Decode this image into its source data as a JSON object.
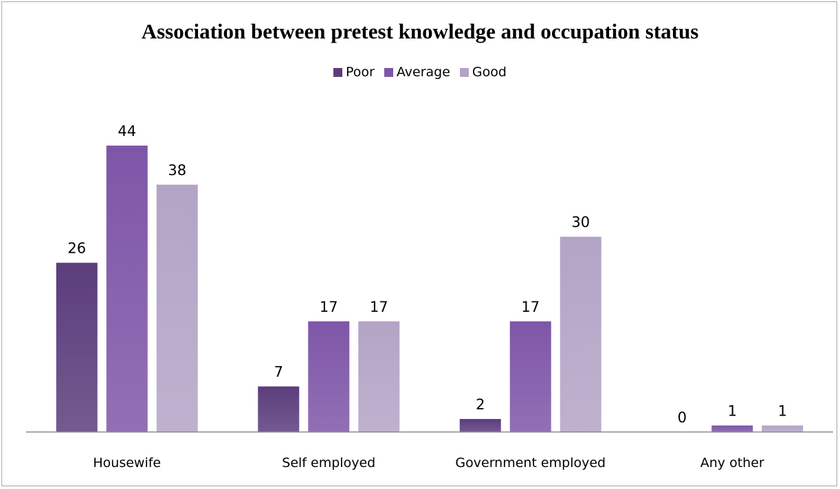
{
  "chart_data": {
    "type": "bar",
    "title": "Association between pretest knowledge and occupation status",
    "categories": [
      "Housewife",
      "Self employed",
      "Government employed",
      "Any other"
    ],
    "series": [
      {
        "name": "Poor",
        "values": [
          26,
          7,
          2,
          0
        ],
        "color": "#5b3d7c"
      },
      {
        "name": "Average",
        "values": [
          44,
          17,
          17,
          1
        ],
        "color": "#7e56a8"
      },
      {
        "name": "Good",
        "values": [
          38,
          17,
          30,
          1
        ],
        "color": "#b3a4c6"
      }
    ],
    "legend_position": "top-center",
    "grid": false,
    "ylim": [
      0,
      50
    ]
  }
}
